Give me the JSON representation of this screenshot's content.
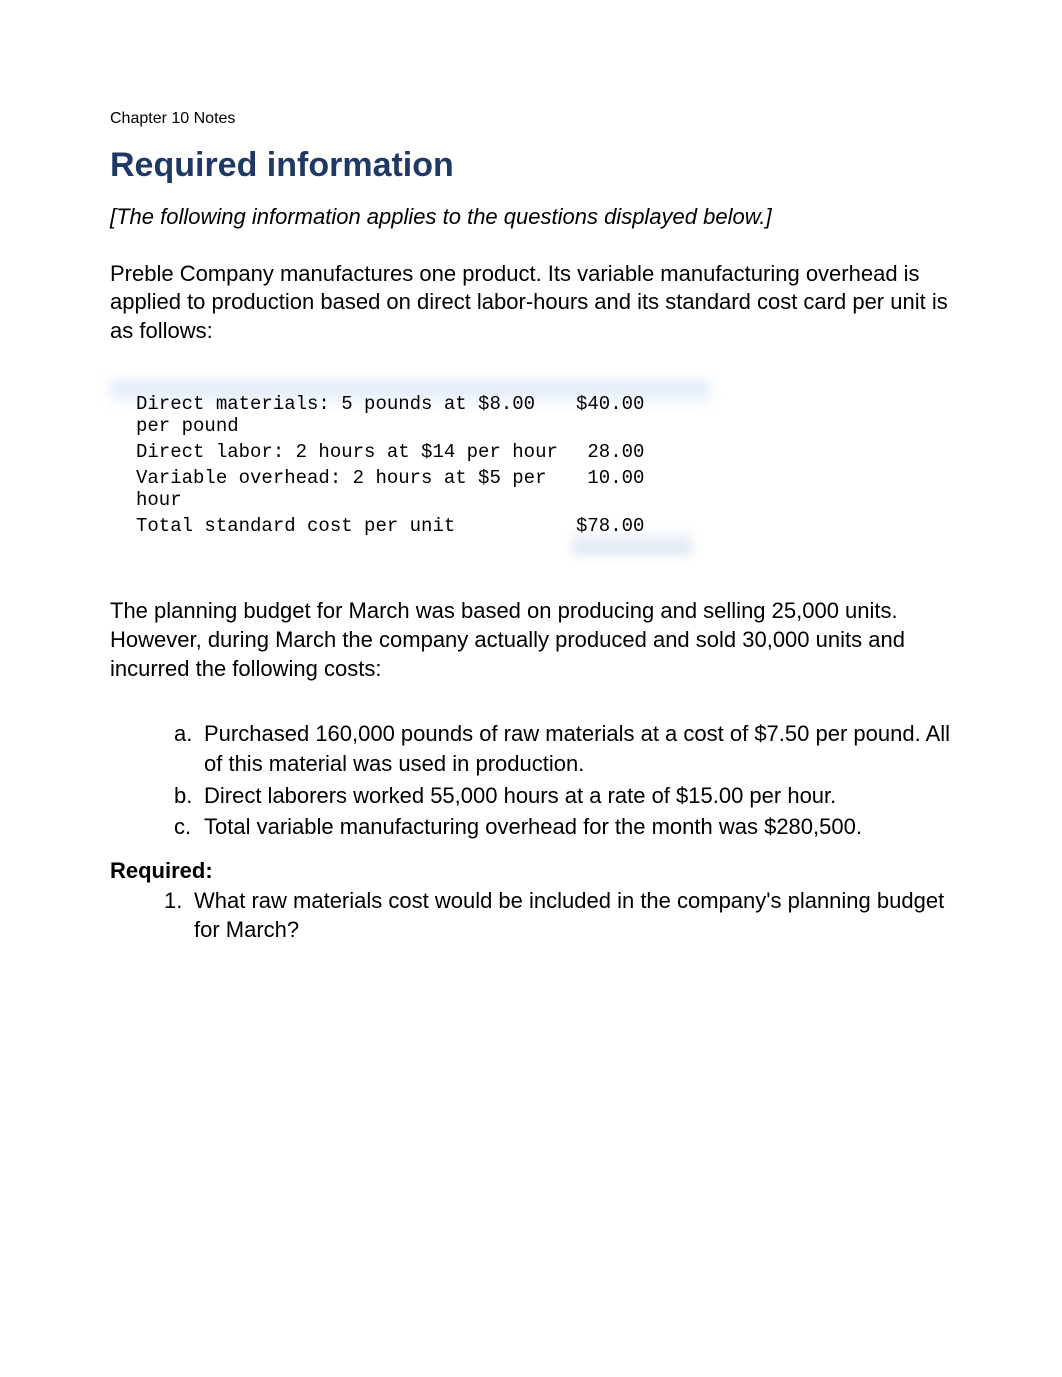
{
  "header": {
    "chapter_label": "Chapter 10 Notes"
  },
  "title": "Required information",
  "intro_note": "[The following information applies to the questions displayed below.]",
  "intro_paragraph": "Preble Company manufactures one product. Its variable manufacturing overhead is applied to production based on direct labor-hours and its standard cost card per unit is as follows:",
  "cost_table": {
    "type": "table",
    "font_family": "Courier New",
    "font_size_pt": 14,
    "text_color": "#000000",
    "background_color": "#ffffff",
    "columns": [
      "description",
      "amount"
    ],
    "column_align": [
      "left",
      "right"
    ],
    "rows": [
      {
        "desc": "Direct materials: 5 pounds at $8.00 per pound",
        "value": "$40.00"
      },
      {
        "desc": "Direct labor: 2 hours at $14 per hour",
        "value": "28.00"
      },
      {
        "desc": "Variable overhead: 2 hours at $5 per hour",
        "value": "10.00"
      },
      {
        "desc": "Total standard cost per unit",
        "value": "$78.00"
      }
    ],
    "blur_overlay_colors": [
      "#d6e4f5",
      "#c8d7eb"
    ]
  },
  "mid_paragraph": "The planning budget for March was based on producing and selling 25,000 units. However, during March the company actually produced and sold 30,000 units and incurred the following costs:",
  "lettered_items": [
    {
      "marker": "a.",
      "text": "Purchased 160,000 pounds of raw materials at a cost of $7.50 per pound. All of this material was used in production."
    },
    {
      "marker": "b.",
      "text": "Direct laborers worked 55,000 hours at a rate of $15.00 per hour."
    },
    {
      "marker": "c.",
      "text": "Total variable manufacturing overhead for the month was $280,500."
    }
  ],
  "required_label": "Required:",
  "numbered_items": [
    {
      "marker": "1.",
      "text": "What raw materials cost would be included in the company's planning budget for March?"
    }
  ],
  "colors": {
    "title": "#1f3864",
    "body_text": "#000000",
    "background": "#ffffff"
  },
  "typography": {
    "title_fontsize_pt": 26,
    "body_fontsize_pt": 17,
    "header_fontsize_pt": 12,
    "mono_fontsize_pt": 14
  }
}
